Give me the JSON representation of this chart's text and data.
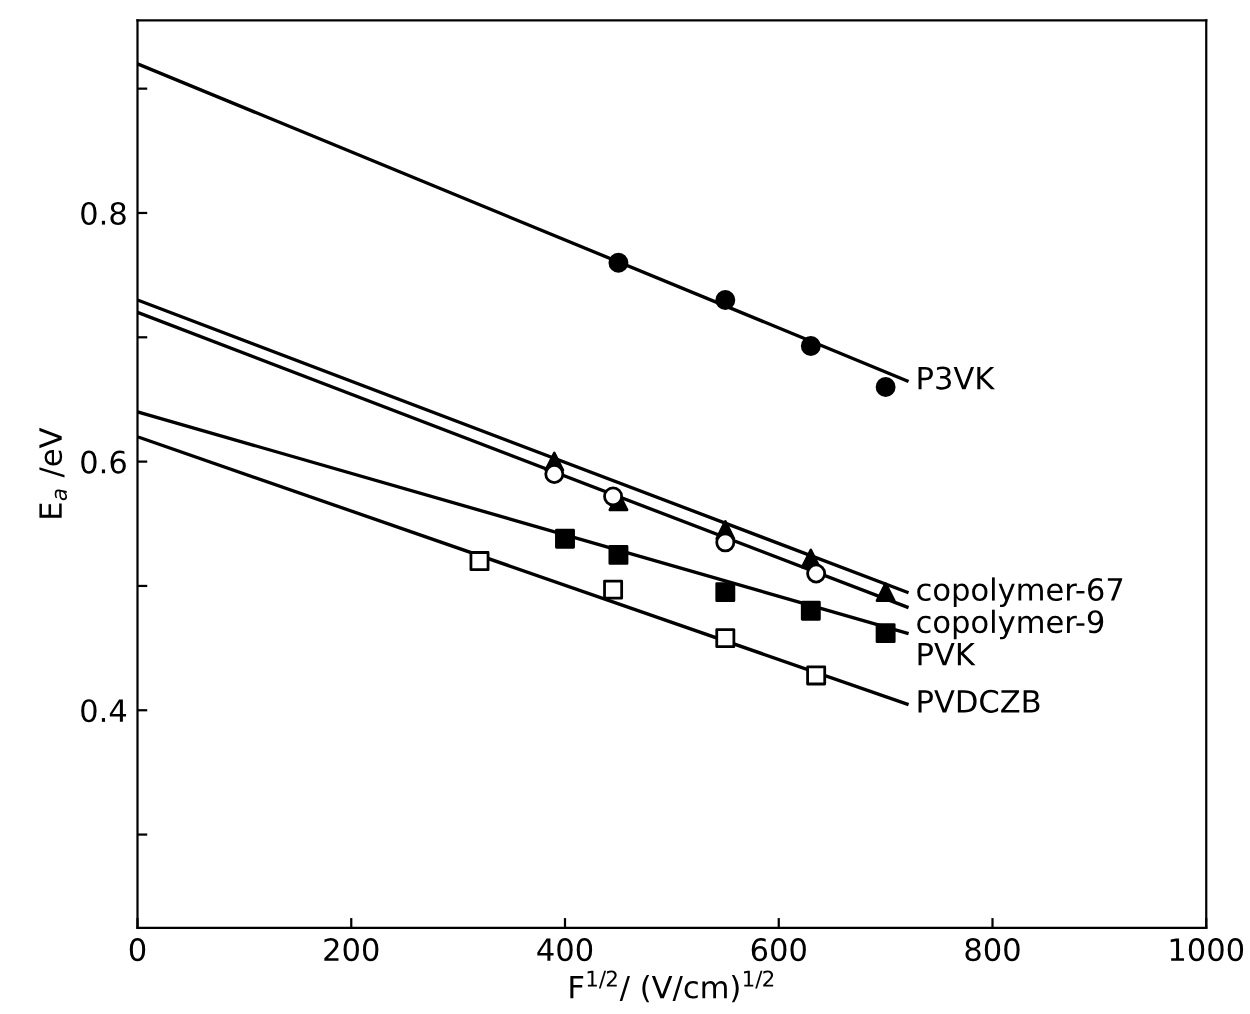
{
  "chart_data": {
    "type": "scatter",
    "xlabel": "F$^{1/2}$/ (V/cm)$^{1/2}$",
    "ylabel": "E$_{a}$ /eV",
    "xlim": [
      0,
      1000
    ],
    "xticks": [
      0,
      200,
      400,
      600,
      800,
      1000
    ],
    "ylim": [
      0.225,
      0.955
    ],
    "yticks": [
      {
        "value": 0.3,
        "label": null
      },
      0.4,
      {
        "value": 0.5,
        "label": null
      },
      0.6,
      {
        "value": 0.7,
        "label": null
      },
      0.8,
      {
        "value": 0.9,
        "label": null
      }
    ],
    "grid": false,
    "legend": false,
    "series": [
      {
        "type": "line",
        "name": "P3VK",
        "color": "#000000",
        "x": [
          0,
          720
        ],
        "values": [
          0.92,
          0.665
        ]
      },
      {
        "marker": "circle",
        "color": "#000000",
        "x": [
          450,
          550,
          630,
          700
        ],
        "values": [
          0.76,
          0.73,
          0.693,
          0.66
        ]
      },
      {
        "type": "line",
        "name": "copolymer-67",
        "color": "#000000",
        "x": [
          0,
          720
        ],
        "values": [
          0.73,
          0.495
        ]
      },
      {
        "marker": "triangle",
        "color": "#000000",
        "x": [
          390,
          450,
          550,
          630,
          700
        ],
        "values": [
          0.6,
          0.568,
          0.545,
          0.522,
          0.495
        ]
      },
      {
        "type": "line",
        "name": "copolymer-9",
        "color": "#000000",
        "x": [
          0,
          720
        ],
        "values": [
          0.72,
          0.483
        ]
      },
      {
        "marker": "circle",
        "color": "#ffffff",
        "x": [
          390,
          445,
          550,
          635
        ],
        "values": [
          0.59,
          0.572,
          0.535,
          0.51
        ]
      },
      {
        "type": "line",
        "name": "PVK",
        "color": "#000000",
        "x": [
          0,
          720
        ],
        "values": [
          0.64,
          0.462
        ]
      },
      {
        "marker": "square",
        "color": "#000000",
        "x": [
          400,
          450,
          550,
          630,
          700
        ],
        "values": [
          0.538,
          0.525,
          0.495,
          0.48,
          0.462
        ]
      },
      {
        "type": "line",
        "name": "PVDCZB",
        "color": "#000000",
        "x": [
          0,
          720
        ],
        "values": [
          0.62,
          0.405
        ]
      },
      {
        "marker": "square",
        "color": "#ffffff",
        "x": [
          320,
          445,
          550,
          635
        ],
        "values": [
          0.52,
          0.497,
          0.458,
          0.428
        ]
      }
    ]
  }
}
